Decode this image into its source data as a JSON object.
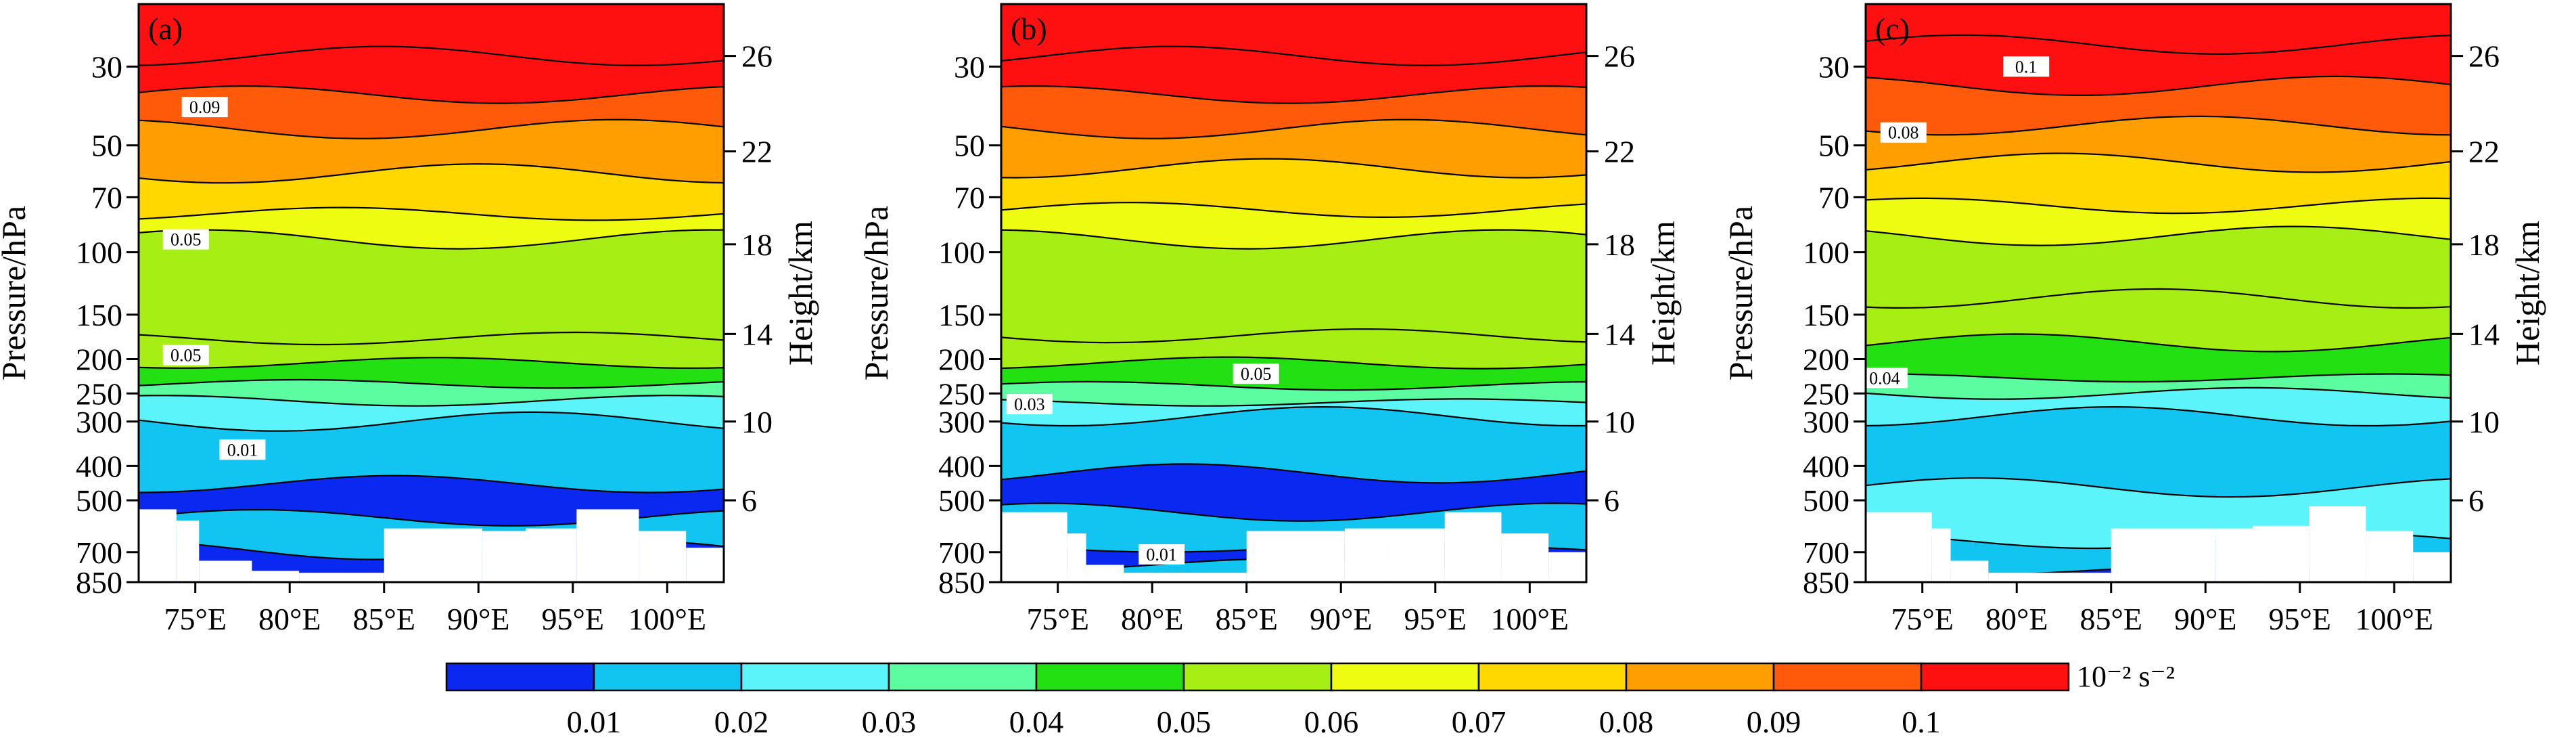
{
  "chart_data": {
    "type": "contour",
    "colorbar": {
      "unit": "10⁻² s⁻²",
      "levels": [
        0.01,
        0.02,
        0.03,
        0.04,
        0.05,
        0.06,
        0.07,
        0.08,
        0.09,
        0.1
      ],
      "labels": [
        "0.01",
        "0.02",
        "0.03",
        "0.04",
        "0.05",
        "0.06",
        "0.07",
        "0.08",
        "0.09",
        "0.1"
      ],
      "colors": [
        "#0a28f0",
        "#12c4f0",
        "#5af4fa",
        "#5cfca0",
        "#22e012",
        "#a6ee14",
        "#eefc12",
        "#ffd800",
        "#ff9e00",
        "#ff5a0a",
        "#ff1010"
      ]
    },
    "shared_axes": {
      "xlabel": "",
      "x_ticks": [
        "75°E",
        "80°E",
        "85°E",
        "90°E",
        "95°E",
        "100°E"
      ],
      "x_tick_values": [
        75,
        80,
        85,
        90,
        95,
        100
      ],
      "xlim": [
        72,
        103
      ],
      "ylabel_left": "Pressure/hPa",
      "y_ticks_left": [
        "30",
        "50",
        "70",
        "100",
        "150",
        "200",
        "250",
        "300",
        "400",
        "500",
        "700",
        "850"
      ],
      "y_tick_values_left": [
        30,
        50,
        70,
        100,
        150,
        200,
        250,
        300,
        400,
        500,
        700,
        850
      ],
      "ylim_pressure": [
        850,
        20
      ],
      "y_scale": "log",
      "ylabel_right": "Height/km",
      "y_ticks_right": [
        "6",
        "10",
        "14",
        "18",
        "22",
        "26"
      ],
      "y_tick_values_right": [
        6,
        10,
        14,
        18,
        22,
        26
      ]
    },
    "panels": [
      {
        "label": "(a)",
        "bands": [
          {
            "p": 20,
            "level": 10
          },
          {
            "p": 28,
            "level": 10
          },
          {
            "p": 36,
            "level": 9
          },
          {
            "p": 45,
            "level": 8
          },
          {
            "p": 60,
            "level": 7
          },
          {
            "p": 78,
            "level": 6
          },
          {
            "p": 92,
            "level": 5
          },
          {
            "p": 175,
            "level": 5
          },
          {
            "p": 205,
            "level": 4
          },
          {
            "p": 235,
            "level": 3
          },
          {
            "p": 262,
            "level": 2
          },
          {
            "p": 300,
            "level": 1
          },
          {
            "p": 450,
            "level": 0
          },
          {
            "p": 560,
            "level": 1
          },
          {
            "p": 690,
            "level": 0
          }
        ],
        "contour_labels": [
          {
            "text": "0.09",
            "lon": 75.5,
            "p": 39
          },
          {
            "text": "0.05",
            "lon": 74.5,
            "p": 92
          },
          {
            "text": "0.05",
            "lon": 74.5,
            "p": 195
          },
          {
            "text": "0.01",
            "lon": 77.5,
            "p": 360
          }
        ],
        "terrain": [
          {
            "lon0": 72.0,
            "lon1": 74.0,
            "p": 530
          },
          {
            "lon0": 74.0,
            "lon1": 75.2,
            "p": 570
          },
          {
            "lon0": 75.2,
            "lon1": 78.0,
            "p": 740
          },
          {
            "lon0": 78.0,
            "lon1": 80.5,
            "p": 790
          },
          {
            "lon0": 80.5,
            "lon1": 85.0,
            "p": 800
          },
          {
            "lon0": 85.0,
            "lon1": 90.2,
            "p": 600
          },
          {
            "lon0": 90.2,
            "lon1": 92.5,
            "p": 610
          },
          {
            "lon0": 92.5,
            "lon1": 95.2,
            "p": 600
          },
          {
            "lon0": 95.2,
            "lon1": 98.5,
            "p": 530
          },
          {
            "lon0": 98.5,
            "lon1": 101.0,
            "p": 610
          },
          {
            "lon0": 101.0,
            "lon1": 103.0,
            "p": 680
          }
        ]
      },
      {
        "label": "(b)",
        "bands": [
          {
            "p": 20,
            "level": 10
          },
          {
            "p": 28,
            "level": 10
          },
          {
            "p": 36,
            "level": 9
          },
          {
            "p": 45,
            "level": 8
          },
          {
            "p": 58,
            "level": 7
          },
          {
            "p": 76,
            "level": 6
          },
          {
            "p": 92,
            "level": 5
          },
          {
            "p": 172,
            "level": 5
          },
          {
            "p": 205,
            "level": 4
          },
          {
            "p": 238,
            "level": 3
          },
          {
            "p": 265,
            "level": 2
          },
          {
            "p": 290,
            "level": 1
          },
          {
            "p": 420,
            "level": 0
          },
          {
            "p": 540,
            "level": 1
          },
          {
            "p": 680,
            "level": 0
          },
          {
            "p": 760,
            "level": 1
          }
        ],
        "contour_labels": [
          {
            "text": "0.05",
            "lon": 85.5,
            "p": 220
          },
          {
            "text": "0.03",
            "lon": 73.5,
            "p": 268
          },
          {
            "text": "0.01",
            "lon": 80.5,
            "p": 710
          }
        ],
        "terrain": [
          {
            "lon0": 72.0,
            "lon1": 75.5,
            "p": 540
          },
          {
            "lon0": 75.5,
            "lon1": 76.5,
            "p": 620
          },
          {
            "lon0": 76.5,
            "lon1": 78.5,
            "p": 760
          },
          {
            "lon0": 78.5,
            "lon1": 85.0,
            "p": 800
          },
          {
            "lon0": 85.0,
            "lon1": 90.2,
            "p": 610
          },
          {
            "lon0": 90.2,
            "lon1": 92.5,
            "p": 600
          },
          {
            "lon0": 92.5,
            "lon1": 95.5,
            "p": 600
          },
          {
            "lon0": 95.5,
            "lon1": 98.5,
            "p": 540
          },
          {
            "lon0": 98.5,
            "lon1": 101.0,
            "p": 620
          },
          {
            "lon0": 101.0,
            "lon1": 103.0,
            "p": 700
          }
        ]
      },
      {
        "label": "(c)",
        "bands": [
          {
            "p": 20,
            "level": 10
          },
          {
            "p": 26,
            "level": 10
          },
          {
            "p": 34,
            "level": 9
          },
          {
            "p": 44,
            "level": 8
          },
          {
            "p": 56,
            "level": 7
          },
          {
            "p": 74,
            "level": 6
          },
          {
            "p": 90,
            "level": 5
          },
          {
            "p": 135,
            "level": 5
          },
          {
            "p": 180,
            "level": 4
          },
          {
            "p": 226,
            "level": 3
          },
          {
            "p": 250,
            "level": 2
          },
          {
            "p": 290,
            "level": 1
          },
          {
            "p": 460,
            "level": 2
          },
          {
            "p": 650,
            "level": 1
          },
          {
            "p": 790,
            "level": 0
          }
        ],
        "contour_labels": [
          {
            "text": "0.1",
            "lon": 80.5,
            "p": 30
          },
          {
            "text": "0.08",
            "lon": 74.0,
            "p": 46
          },
          {
            "text": "0.04",
            "lon": 73.0,
            "p": 226
          }
        ],
        "terrain": [
          {
            "lon0": 72.0,
            "lon1": 75.5,
            "p": 540
          },
          {
            "lon0": 75.5,
            "lon1": 76.5,
            "p": 600
          },
          {
            "lon0": 76.5,
            "lon1": 78.5,
            "p": 740
          },
          {
            "lon0": 78.5,
            "lon1": 85.0,
            "p": 800
          },
          {
            "lon0": 85.0,
            "lon1": 90.5,
            "p": 600
          },
          {
            "lon0": 90.5,
            "lon1": 92.5,
            "p": 600
          },
          {
            "lon0": 92.5,
            "lon1": 95.5,
            "p": 590
          },
          {
            "lon0": 95.5,
            "lon1": 98.5,
            "p": 520
          },
          {
            "lon0": 98.5,
            "lon1": 101.0,
            "p": 610
          },
          {
            "lon0": 101.0,
            "lon1": 103.0,
            "p": 700
          }
        ]
      }
    ]
  }
}
